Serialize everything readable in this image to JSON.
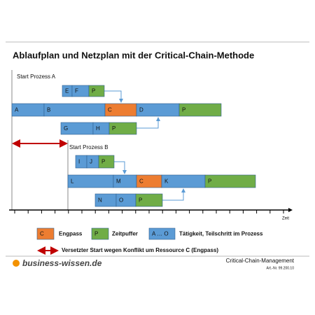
{
  "title": "Ablaufplan und Netzplan mit der Critical-Chain-Methode",
  "processes": [
    {
      "start_label": "Start Prozess A",
      "rows": [
        [
          "E",
          "F",
          "P"
        ],
        [
          "A",
          "B",
          "C",
          "D",
          "P"
        ],
        [
          "G",
          "H",
          "P"
        ]
      ]
    },
    {
      "start_label": "Start Prozess B",
      "rows": [
        [
          "I",
          "J",
          "P"
        ],
        [
          "L",
          "M",
          "C",
          "K",
          "P"
        ],
        [
          "N",
          "O",
          "P"
        ]
      ]
    }
  ],
  "axis_label": "Zeit",
  "legend": [
    {
      "symbol": "C",
      "label": "Engpass"
    },
    {
      "symbol": "P",
      "label": "Zeitpuffer"
    },
    {
      "symbol": "A … O",
      "label": "Tätigkeit, Teilschritt im Prozess"
    }
  ],
  "arrow_legend": "Versetzter Start wegen Konflikt um Ressource C (Engpass)",
  "footer": {
    "brand": "business-wissen.de",
    "topic": "Critical-Chain-Management",
    "article": "Art.-Nr. 99.200.10"
  }
}
